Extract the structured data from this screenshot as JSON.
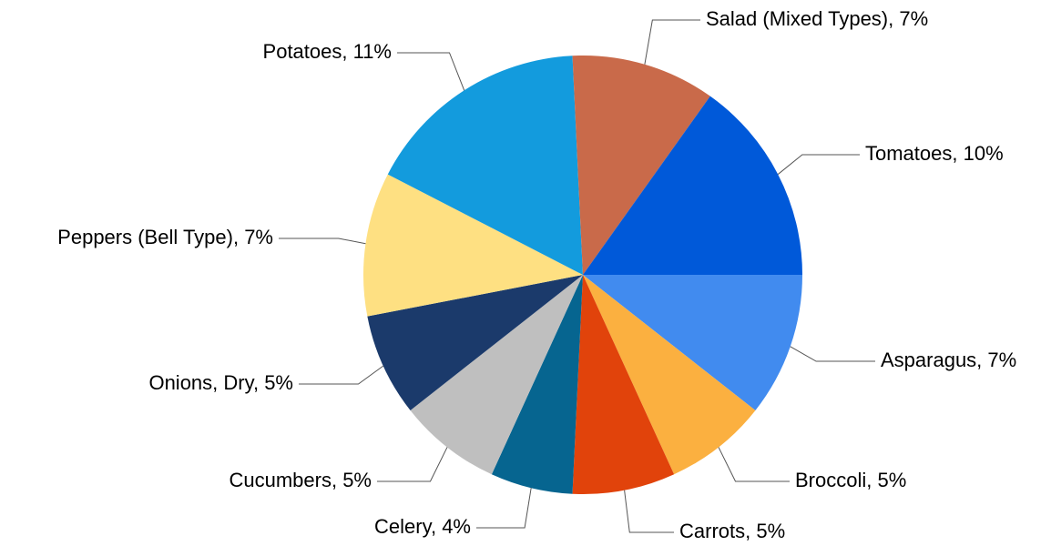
{
  "chart_data": {
    "type": "pie",
    "values": [
      7,
      5,
      5,
      4,
      5,
      5,
      7,
      11,
      7,
      10
    ],
    "value_labels": [
      "Asparagus, 7%",
      "Broccoli, 5%",
      "Carrots, 5%",
      "Celery, 4%",
      "Cucumbers, 5%",
      "Onions, Dry, 5%",
      "Peppers (Bell Type), 7%",
      "Potatoes, 11%",
      "Salad (Mixed Types), 7%",
      "Tomatoes, 10%"
    ],
    "colors": [
      "#418bef",
      "#fbb040",
      "#e1430b",
      "#066590",
      "#bfbfbf",
      "#1b3a6b",
      "#fee082",
      "#139bdd",
      "#c96a4a",
      "#0059d9"
    ]
  }
}
